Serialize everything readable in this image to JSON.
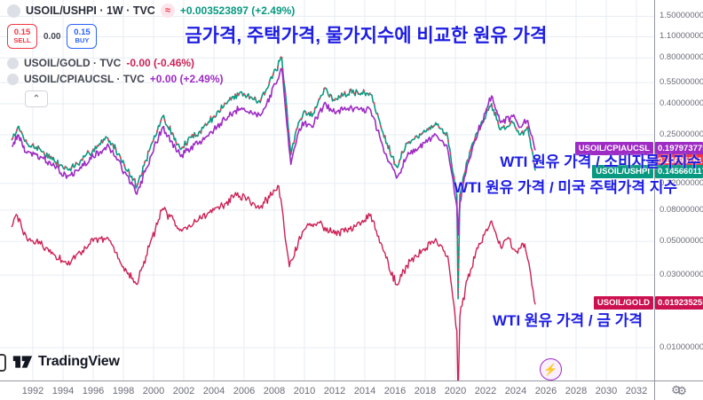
{
  "header": {
    "main_row": {
      "symbol": "USOIL/USHPI · 1W · TVC",
      "change": "+0.003523897 (+2.49%)"
    },
    "trade": {
      "sell_price": "0.15",
      "sell_label": "SELL",
      "spread": "0.00",
      "buy_price": "0.15",
      "buy_label": "BUY"
    },
    "compare_rows": [
      {
        "symbol": "USOIL/GOLD · TVC",
        "change": "-0.00 (-0.46%)",
        "color": "#cc2255"
      },
      {
        "symbol": "USOIL/CPIAUCSL · TVC",
        "change": "+0.00 (+2.49%)",
        "color": "#9e2bc4"
      }
    ],
    "approx_icon": "≈",
    "collapse_icon": "⌃"
  },
  "annotations": {
    "title": "금가격, 주택가격, 물가지수에 비교한 원유 가격",
    "cpi_label": "WTI 원유 가격 / 소비자물가지수",
    "hpi_label": "WTI 원유 가격 / 미국 주택가격 지수",
    "gold_label": "WTI 원유 가격 / 금 가격"
  },
  "footer": {
    "logo_text": "TradingView"
  },
  "icons": {
    "gear": "⚙",
    "lightning": "⚡"
  },
  "colors": {
    "teal": "#089981",
    "candle_red": "#e0455a",
    "purple": "#9e2bc4",
    "crimson": "#cc2255",
    "sell_red": "#f23645",
    "buy_blue": "#2962ff",
    "annotation_blue": "#1d1ce3",
    "grid": "#e7edf3"
  },
  "chart_data": {
    "type": "line",
    "y_scale": "log",
    "title": "금가격, 주택가격, 물가지수에 비교한 원유 가격",
    "x_ticks": [
      1992,
      1994,
      1996,
      1998,
      2000,
      2002,
      2004,
      2006,
      2008,
      2010,
      2012,
      2014,
      2016,
      2018,
      2020,
      2022,
      2024,
      2026,
      2028,
      2030,
      2032
    ],
    "y_ticks": [
      1.5,
      1.1,
      0.8,
      0.55,
      0.4,
      0.25,
      0.12,
      0.08,
      0.05,
      0.03,
      0.01
    ],
    "x_range": [
      1990.5,
      2033.2
    ],
    "grid": true,
    "price_labels": [
      {
        "symbol": "USOIL/CPIAUCSL",
        "value": 0.197973775,
        "color": "#9e2bc4"
      },
      {
        "symbol": "",
        "value": 0.146957817,
        "color": "#f23645"
      },
      {
        "symbol": "USOIL/USHPI",
        "value": 0.145660117,
        "color": "#089981"
      },
      {
        "symbol": "USOIL/GOLD",
        "value": 0.019235255,
        "color": "#cc1150"
      }
    ],
    "series": [
      {
        "name": "USOIL/USHPI",
        "color": "#089981",
        "accent": "#e0455a",
        "last": 0.145660117,
        "points": [
          [
            1990.6,
            0.23
          ],
          [
            1991.0,
            0.28
          ],
          [
            1991.6,
            0.22
          ],
          [
            1992.5,
            0.2
          ],
          [
            1993.5,
            0.165
          ],
          [
            1994.3,
            0.148
          ],
          [
            1995.0,
            0.16
          ],
          [
            1996.0,
            0.2
          ],
          [
            1996.9,
            0.24
          ],
          [
            1997.5,
            0.2
          ],
          [
            1998.9,
            0.115
          ],
          [
            1999.5,
            0.17
          ],
          [
            2000.6,
            0.33
          ],
          [
            2001.8,
            0.2
          ],
          [
            2002.5,
            0.24
          ],
          [
            2003.0,
            0.26
          ],
          [
            2004.0,
            0.33
          ],
          [
            2005.0,
            0.42
          ],
          [
            2005.7,
            0.47
          ],
          [
            2006.5,
            0.44
          ],
          [
            2007.0,
            0.42
          ],
          [
            2007.5,
            0.5
          ],
          [
            2008.5,
            0.8
          ],
          [
            2009.1,
            0.185
          ],
          [
            2009.6,
            0.3
          ],
          [
            2010.0,
            0.36
          ],
          [
            2010.5,
            0.33
          ],
          [
            2011.3,
            0.5
          ],
          [
            2012.0,
            0.42
          ],
          [
            2012.6,
            0.46
          ],
          [
            2013.5,
            0.48
          ],
          [
            2014.4,
            0.46
          ],
          [
            2015.2,
            0.26
          ],
          [
            2016.1,
            0.155
          ],
          [
            2016.8,
            0.22
          ],
          [
            2017.5,
            0.24
          ],
          [
            2018.7,
            0.3
          ],
          [
            2019.5,
            0.24
          ],
          [
            2020.1,
            0.1
          ],
          [
            2020.18,
            0.021
          ],
          [
            2020.3,
            0.1
          ],
          [
            2020.8,
            0.17
          ],
          [
            2021.5,
            0.26
          ],
          [
            2022.4,
            0.4
          ],
          [
            2023.0,
            0.27
          ],
          [
            2023.8,
            0.3
          ],
          [
            2024.3,
            0.25
          ],
          [
            2024.8,
            0.28
          ],
          [
            2025.3,
            0.145660117
          ]
        ]
      },
      {
        "name": "USOIL/CPIAUCSL",
        "color": "#9e2bc4",
        "last": 0.197973775,
        "points": [
          [
            1990.6,
            0.21
          ],
          [
            1991.0,
            0.25
          ],
          [
            1991.6,
            0.19
          ],
          [
            1992.5,
            0.18
          ],
          [
            1993.5,
            0.15
          ],
          [
            1994.3,
            0.135
          ],
          [
            1995.0,
            0.145
          ],
          [
            1996.0,
            0.18
          ],
          [
            1996.9,
            0.21
          ],
          [
            1997.5,
            0.18
          ],
          [
            1998.9,
            0.102
          ],
          [
            1999.5,
            0.15
          ],
          [
            2000.6,
            0.28
          ],
          [
            2001.8,
            0.18
          ],
          [
            2002.5,
            0.21
          ],
          [
            2003.0,
            0.22
          ],
          [
            2004.0,
            0.27
          ],
          [
            2005.0,
            0.33
          ],
          [
            2005.7,
            0.37
          ],
          [
            2006.5,
            0.35
          ],
          [
            2007.0,
            0.34
          ],
          [
            2007.5,
            0.4
          ],
          [
            2008.5,
            0.68
          ],
          [
            2009.1,
            0.16
          ],
          [
            2009.6,
            0.26
          ],
          [
            2010.0,
            0.3
          ],
          [
            2010.5,
            0.28
          ],
          [
            2011.3,
            0.4
          ],
          [
            2012.0,
            0.35
          ],
          [
            2012.6,
            0.37
          ],
          [
            2013.5,
            0.38
          ],
          [
            2014.4,
            0.36
          ],
          [
            2015.2,
            0.21
          ],
          [
            2016.1,
            0.13
          ],
          [
            2016.8,
            0.18
          ],
          [
            2017.5,
            0.2
          ],
          [
            2018.7,
            0.25
          ],
          [
            2019.5,
            0.2
          ],
          [
            2020.1,
            0.085
          ],
          [
            2020.18,
            0.055
          ],
          [
            2020.3,
            0.09
          ],
          [
            2020.8,
            0.16
          ],
          [
            2021.5,
            0.26
          ],
          [
            2022.4,
            0.45
          ],
          [
            2023.0,
            0.3
          ],
          [
            2023.8,
            0.33
          ],
          [
            2024.3,
            0.28
          ],
          [
            2024.8,
            0.31
          ],
          [
            2025.3,
            0.197973775
          ]
        ]
      },
      {
        "name": "USOIL/GOLD",
        "color": "#cc2255",
        "last": 0.019235255,
        "points": [
          [
            1990.6,
            0.062
          ],
          [
            1990.9,
            0.075
          ],
          [
            1991.6,
            0.052
          ],
          [
            1992.5,
            0.048
          ],
          [
            1993.5,
            0.04
          ],
          [
            1994.3,
            0.035
          ],
          [
            1995.0,
            0.042
          ],
          [
            1996.0,
            0.05
          ],
          [
            1997.0,
            0.052
          ],
          [
            1998.0,
            0.034
          ],
          [
            1998.9,
            0.026
          ],
          [
            1999.5,
            0.04
          ],
          [
            2000.6,
            0.082
          ],
          [
            2001.8,
            0.06
          ],
          [
            2003.0,
            0.07
          ],
          [
            2004.0,
            0.08
          ],
          [
            2005.5,
            0.1
          ],
          [
            2006.2,
            0.095
          ],
          [
            2007.0,
            0.082
          ],
          [
            2008.3,
            0.115
          ],
          [
            2009.0,
            0.034
          ],
          [
            2009.6,
            0.05
          ],
          [
            2010.0,
            0.06
          ],
          [
            2011.0,
            0.066
          ],
          [
            2012.0,
            0.056
          ],
          [
            2013.0,
            0.06
          ],
          [
            2014.4,
            0.075
          ],
          [
            2015.2,
            0.044
          ],
          [
            2016.1,
            0.026
          ],
          [
            2017.0,
            0.037
          ],
          [
            2018.7,
            0.052
          ],
          [
            2019.5,
            0.04
          ],
          [
            2020.1,
            0.013
          ],
          [
            2020.18,
            0.0048
          ],
          [
            2020.3,
            0.016
          ],
          [
            2020.8,
            0.028
          ],
          [
            2021.5,
            0.045
          ],
          [
            2022.4,
            0.068
          ],
          [
            2023.0,
            0.046
          ],
          [
            2023.5,
            0.053
          ],
          [
            2024.0,
            0.043
          ],
          [
            2024.6,
            0.048
          ],
          [
            2025.0,
            0.03
          ],
          [
            2025.3,
            0.019235255
          ]
        ]
      }
    ]
  }
}
